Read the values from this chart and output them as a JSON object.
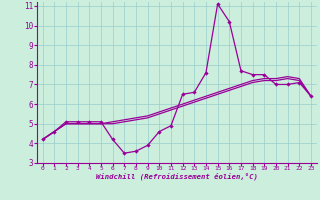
{
  "xlabel": "Windchill (Refroidissement éolien,°C)",
  "background_color": "#cceedd",
  "line_color": "#990099",
  "grid_color": "#99cccc",
  "xlim": [
    -0.5,
    23.5
  ],
  "ylim": [
    3,
    11.2
  ],
  "xticks": [
    0,
    1,
    2,
    3,
    4,
    5,
    6,
    7,
    8,
    9,
    10,
    11,
    12,
    13,
    14,
    15,
    16,
    17,
    18,
    19,
    20,
    21,
    22,
    23
  ],
  "yticks": [
    3,
    4,
    5,
    6,
    7,
    8,
    9,
    10,
    11
  ],
  "line1_x": [
    0,
    1,
    2,
    3,
    4,
    5,
    6,
    7,
    8,
    9,
    10,
    11,
    12,
    13,
    14,
    15,
    16,
    17,
    18,
    19,
    20,
    21,
    22,
    23
  ],
  "line1_y": [
    4.2,
    4.6,
    5.1,
    5.1,
    5.1,
    5.1,
    4.2,
    3.5,
    3.6,
    3.9,
    4.6,
    4.9,
    6.5,
    6.6,
    7.6,
    11.1,
    10.2,
    7.7,
    7.5,
    7.5,
    7.0,
    7.0,
    7.1,
    6.4
  ],
  "line2_x": [
    0,
    1,
    2,
    3,
    4,
    5,
    6,
    7,
    8,
    9,
    10,
    11,
    12,
    13,
    14,
    15,
    16,
    17,
    18,
    19,
    20,
    21,
    22,
    23
  ],
  "line2_y": [
    4.2,
    4.6,
    5.0,
    5.0,
    5.0,
    5.0,
    5.0,
    5.1,
    5.2,
    5.3,
    5.5,
    5.7,
    5.9,
    6.1,
    6.3,
    6.5,
    6.7,
    6.9,
    7.1,
    7.2,
    7.2,
    7.3,
    7.2,
    6.4
  ],
  "line3_x": [
    0,
    1,
    2,
    3,
    4,
    5,
    6,
    7,
    8,
    9,
    10,
    11,
    12,
    13,
    14,
    15,
    16,
    17,
    18,
    19,
    20,
    21,
    22,
    23
  ],
  "line3_y": [
    4.2,
    4.6,
    5.0,
    5.0,
    5.0,
    5.0,
    5.1,
    5.2,
    5.3,
    5.4,
    5.6,
    5.8,
    6.0,
    6.2,
    6.4,
    6.6,
    6.8,
    7.0,
    7.2,
    7.3,
    7.3,
    7.4,
    7.3,
    6.4
  ]
}
